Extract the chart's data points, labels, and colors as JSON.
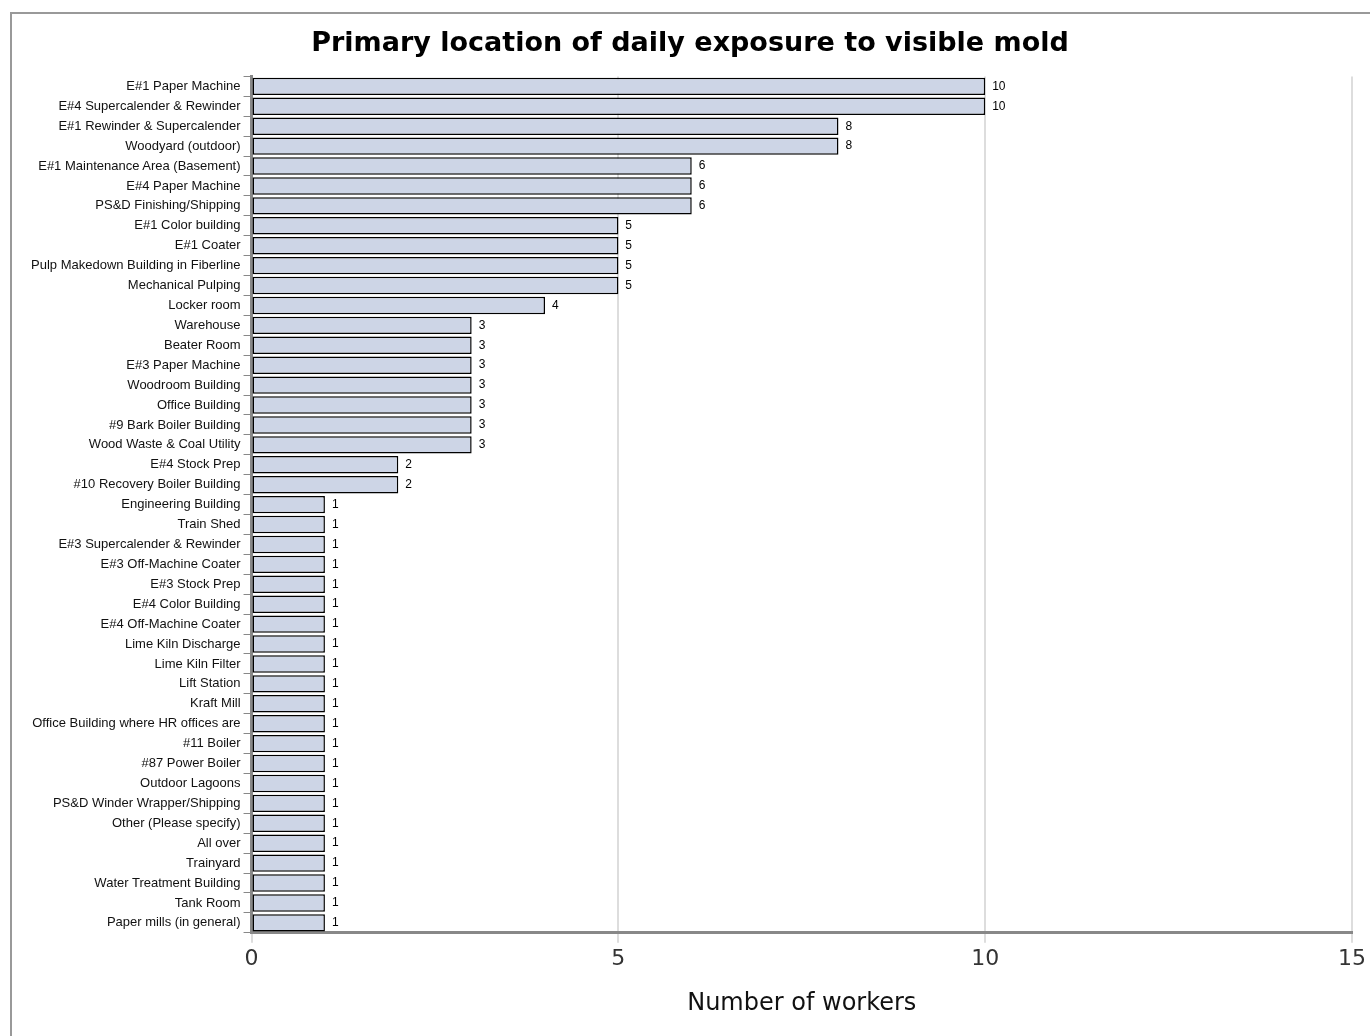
{
  "chart_data": {
    "type": "bar",
    "orientation": "horizontal",
    "title": "Primary location of daily exposure to visible mold",
    "xlabel": "Number of workers",
    "categories": [
      "E#1 Paper Machine",
      "E#4 Supercalender & Rewinder",
      "E#1 Rewinder & Supercalender",
      "Woodyard (outdoor)",
      "E#1 Maintenance Area (Basement)",
      "E#4 Paper Machine",
      "PS&D Finishing/Shipping",
      "E#1 Color building",
      "E#1 Coater",
      "Pulp Makedown Building in Fiberline",
      "Mechanical Pulping",
      "Locker room",
      "Warehouse",
      "Beater Room",
      "E#3 Paper Machine",
      "Woodroom Building",
      "Office Building",
      "#9 Bark Boiler Building",
      "Wood Waste & Coal Utility",
      "E#4 Stock Prep",
      "#10 Recovery Boiler Building",
      "Engineering Building",
      "Train Shed",
      "E#3 Supercalender & Rewinder",
      "E#3 Off-Machine Coater",
      "E#3 Stock Prep",
      "E#4 Color Building",
      "E#4 Off-Machine Coater",
      "Lime Kiln Discharge",
      "Lime Kiln Filter",
      "Lift Station",
      "Kraft Mill",
      "Office Building where HR offices are",
      "#11 Boiler",
      "#87 Power Boiler",
      "Outdoor Lagoons",
      "PS&D Winder Wrapper/Shipping",
      "Other (Please specify)",
      "All over",
      "Trainyard",
      "Water Treatment Building",
      "Tank Room",
      "Paper mills (in general)"
    ],
    "values": [
      10,
      10,
      8,
      8,
      6,
      6,
      6,
      5,
      5,
      5,
      5,
      4,
      3,
      3,
      3,
      3,
      3,
      3,
      3,
      2,
      2,
      1,
      1,
      1,
      1,
      1,
      1,
      1,
      1,
      1,
      1,
      1,
      1,
      1,
      1,
      1,
      1,
      1,
      1,
      1,
      1,
      1,
      1
    ],
    "color": "#cdd5e6",
    "xlim": [
      0,
      15
    ],
    "xticks": [
      0,
      5,
      10,
      15
    ],
    "grid": "x",
    "data_labels": true,
    "legend": false
  }
}
